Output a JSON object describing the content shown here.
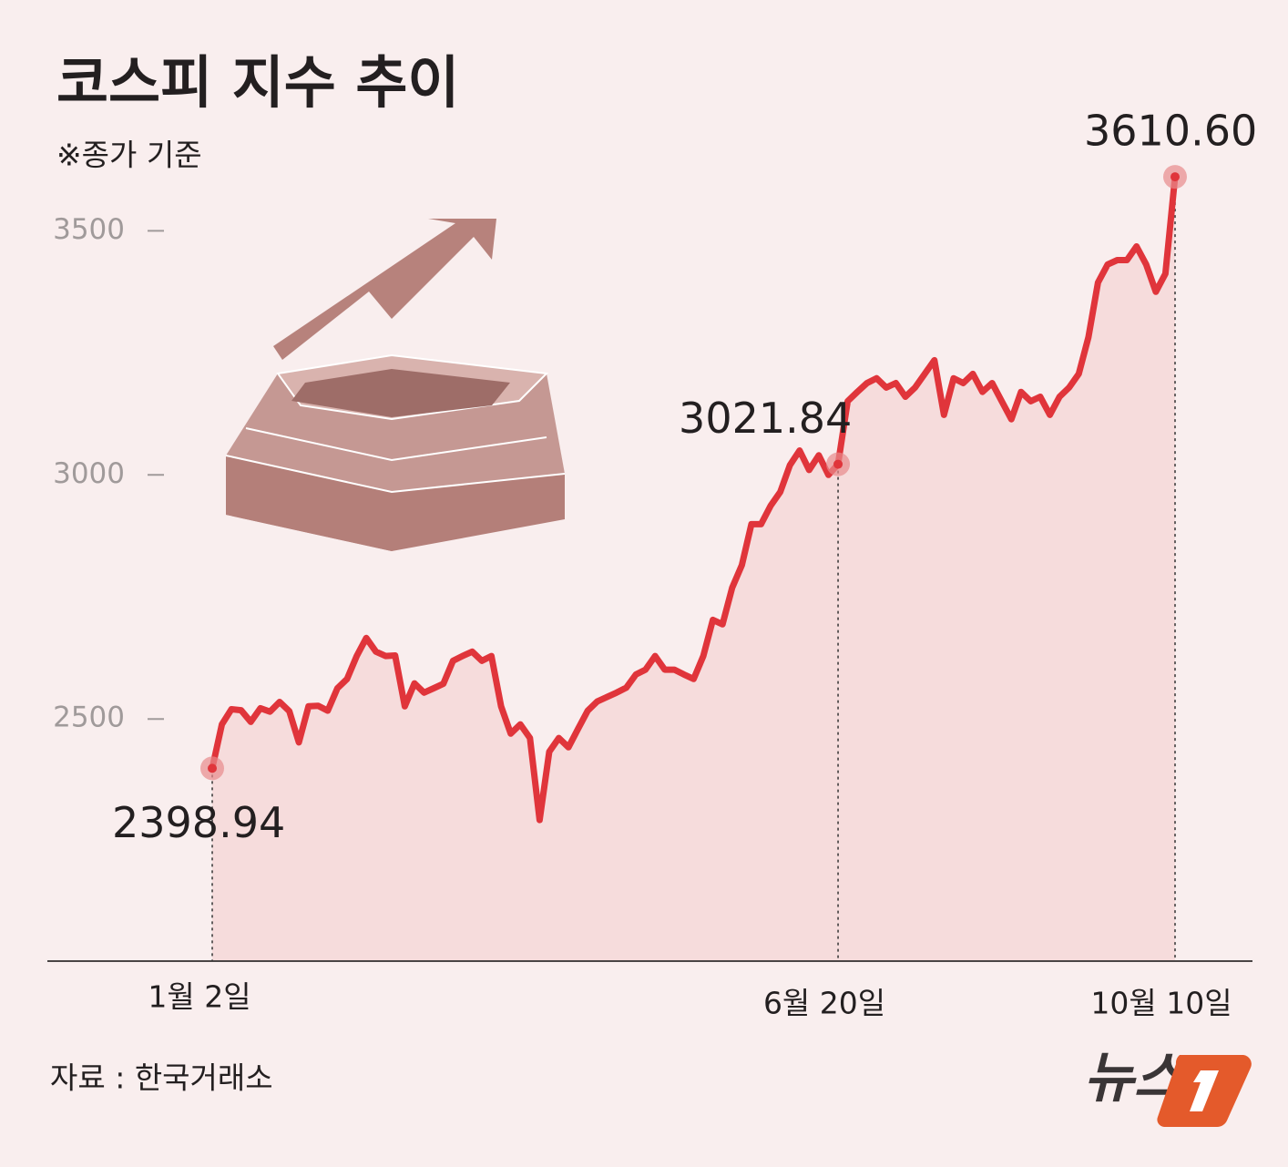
{
  "chart_data": {
    "type": "line",
    "title": "코스피 지수 추이",
    "subtitle": "※종가 기준",
    "categories": [
      "1월 2일",
      null,
      null,
      null,
      null,
      null,
      null,
      null,
      null,
      null,
      null,
      null,
      null,
      null,
      null,
      null,
      null,
      null,
      null,
      null,
      null,
      null,
      null,
      null,
      null,
      null,
      null,
      null,
      null,
      null,
      null,
      null,
      null,
      null,
      null,
      null,
      null,
      null,
      null,
      null,
      null,
      null,
      null,
      null,
      null,
      null,
      null,
      null,
      null,
      null,
      null,
      null,
      null,
      null,
      null,
      null,
      null,
      null,
      null,
      null,
      null,
      null,
      null,
      null,
      null,
      "6월 20일",
      null,
      null,
      null,
      null,
      null,
      null,
      null,
      null,
      null,
      null,
      null,
      null,
      null,
      null,
      null,
      null,
      null,
      null,
      null,
      null,
      null,
      null,
      null,
      null,
      null,
      null,
      null,
      null,
      null,
      null,
      null,
      null,
      null,
      null,
      "10월 10일"
    ],
    "values": [
      2398.94,
      2489,
      2520,
      2518,
      2494,
      2522,
      2515,
      2535,
      2516,
      2452,
      2526,
      2527,
      2517,
      2563,
      2582,
      2629,
      2666,
      2638,
      2629,
      2630,
      2526,
      2573,
      2554,
      2563,
      2572,
      2619,
      2629,
      2638,
      2619,
      2629,
      2526,
      2470,
      2489,
      2461,
      2293,
      2433,
      2461,
      2442,
      2480,
      2517,
      2536,
      2545,
      2554,
      2564,
      2591,
      2601,
      2629,
      2601,
      2601,
      2591,
      2582,
      2629,
      2703,
      2694,
      2769,
      2815,
      2899,
      2899,
      2937,
      2965,
      3020,
      3050,
      3010,
      3040,
      3000,
      3021.84,
      3151,
      3170,
      3188,
      3198,
      3179,
      3188,
      3160,
      3179,
      3207,
      3235,
      3123,
      3198,
      3188,
      3207,
      3170,
      3188,
      3151,
      3114,
      3170,
      3151,
      3160,
      3123,
      3160,
      3179,
      3207,
      3282,
      3394,
      3431,
      3440,
      3440,
      3468,
      3431,
      3375,
      3412,
      3610.6
    ],
    "value_labels": [
      "2398.94",
      null,
      null,
      null,
      null,
      null,
      null,
      null,
      null,
      null,
      null,
      null,
      null,
      null,
      null,
      null,
      null,
      null,
      null,
      null,
      null,
      null,
      null,
      null,
      null,
      null,
      null,
      null,
      null,
      null,
      null,
      null,
      null,
      null,
      null,
      null,
      null,
      null,
      null,
      null,
      null,
      null,
      null,
      null,
      null,
      null,
      null,
      null,
      null,
      null,
      null,
      null,
      null,
      null,
      null,
      null,
      null,
      null,
      null,
      null,
      null,
      null,
      null,
      null,
      null,
      "3021.84",
      null,
      null,
      null,
      null,
      null,
      null,
      null,
      null,
      null,
      null,
      null,
      null,
      null,
      null,
      null,
      null,
      null,
      null,
      null,
      null,
      null,
      null,
      null,
      null,
      null,
      null,
      null,
      null,
      null,
      null,
      null,
      null,
      null,
      null,
      "3610.60"
    ],
    "color": "#e0353b",
    "ylim": [
      2004,
      3900
    ],
    "yticks": [
      2500,
      3000,
      3500
    ],
    "source": "자료 : 한국거래소",
    "logo": "뉴스"
  }
}
